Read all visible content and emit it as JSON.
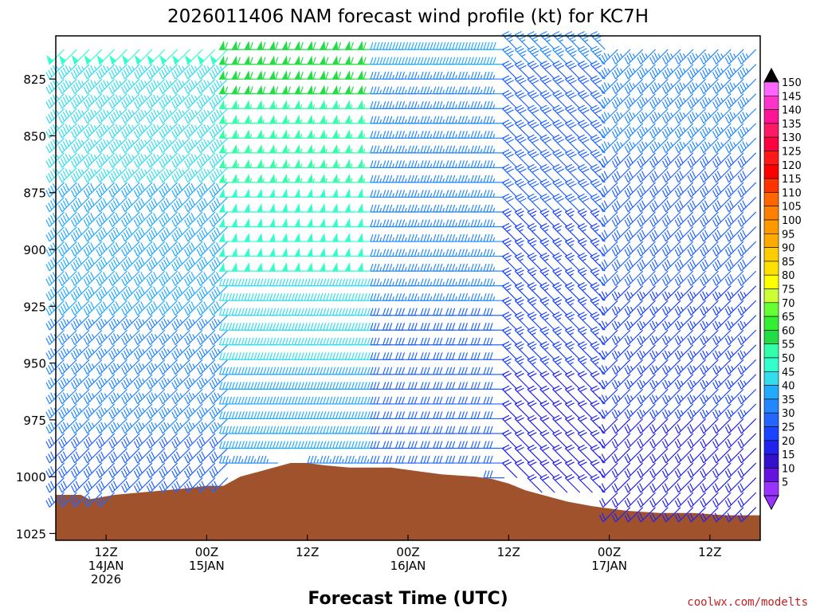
{
  "chart_data": {
    "type": "wind-barb time-height",
    "title": "2026011406 NAM forecast wind profile (kt) for KC7H",
    "xlabel": "Forecast Time (UTC)",
    "credit": "coolwx.com/modelts",
    "y_ticks": [
      "825",
      "850",
      "875",
      "900",
      "925",
      "950",
      "975",
      "1000",
      "1025"
    ],
    "y_values": [
      825,
      850,
      875,
      900,
      925,
      950,
      975,
      1000,
      1025
    ],
    "ylim": [
      1028,
      806
    ],
    "x_tick_labels": [
      {
        "hour": 6,
        "line1": "12Z",
        "line2": "14JAN",
        "line3": "2026"
      },
      {
        "hour": 18,
        "line1": "00Z",
        "line2": "15JAN",
        "line3": ""
      },
      {
        "hour": 30,
        "line1": "12Z",
        "line2": "",
        "line3": ""
      },
      {
        "hour": 42,
        "line1": "00Z",
        "line2": "16JAN",
        "line3": ""
      },
      {
        "hour": 54,
        "line1": "12Z",
        "line2": "",
        "line3": ""
      },
      {
        "hour": 66,
        "line1": "00Z",
        "line2": "17JAN",
        "line3": ""
      },
      {
        "hour": 78,
        "line1": "12Z",
        "line2": "",
        "line3": ""
      }
    ],
    "xlim": [
      0,
      84
    ],
    "surface_pressure": [
      {
        "hour": 0,
        "p": 1008
      },
      {
        "hour": 3,
        "p": 1008
      },
      {
        "hour": 4,
        "p": 1010
      },
      {
        "hour": 7,
        "p": 1008
      },
      {
        "hour": 10,
        "p": 1007
      },
      {
        "hour": 13,
        "p": 1006
      },
      {
        "hour": 16,
        "p": 1005
      },
      {
        "hour": 18,
        "p": 1004
      },
      {
        "hour": 20,
        "p": 1004
      },
      {
        "hour": 22,
        "p": 1000
      },
      {
        "hour": 24,
        "p": 998
      },
      {
        "hour": 26,
        "p": 996
      },
      {
        "hour": 28,
        "p": 994
      },
      {
        "hour": 30,
        "p": 994
      },
      {
        "hour": 32,
        "p": 995
      },
      {
        "hour": 35,
        "p": 996
      },
      {
        "hour": 38,
        "p": 996
      },
      {
        "hour": 40,
        "p": 996
      },
      {
        "hour": 42,
        "p": 997
      },
      {
        "hour": 44,
        "p": 998
      },
      {
        "hour": 46,
        "p": 999
      },
      {
        "hour": 50,
        "p": 1000
      },
      {
        "hour": 52,
        "p": 1001
      },
      {
        "hour": 54,
        "p": 1003
      },
      {
        "hour": 56,
        "p": 1006
      },
      {
        "hour": 58,
        "p": 1008
      },
      {
        "hour": 61,
        "p": 1011
      },
      {
        "hour": 64,
        "p": 1013
      },
      {
        "hour": 68,
        "p": 1015
      },
      {
        "hour": 72,
        "p": 1016
      },
      {
        "hour": 76,
        "p": 1016
      },
      {
        "hour": 80,
        "p": 1017
      },
      {
        "hour": 84,
        "p": 1017
      }
    ],
    "wind_regimes": [
      {
        "from_hour": 0,
        "to_hour": 22,
        "direction": "SW",
        "speed_low_kt": 30,
        "speed_high_kt": 50
      },
      {
        "from_hour": 22,
        "to_hour": 40,
        "direction": "W",
        "speed_low_kt": 35,
        "speed_high_kt": 62
      },
      {
        "from_hour": 40,
        "to_hour": 54,
        "direction": "W",
        "speed_low_kt": 30,
        "speed_high_kt": 40
      },
      {
        "from_hour": 54,
        "to_hour": 66,
        "direction": "NW",
        "speed_low_kt": 20,
        "speed_high_kt": 35
      },
      {
        "from_hour": 66,
        "to_hour": 84,
        "direction": "SW",
        "speed_low_kt": 20,
        "speed_high_kt": 38
      }
    ],
    "colorbar": {
      "labels": [
        "150",
        "145",
        "140",
        "135",
        "130",
        "125",
        "120",
        "115",
        "110",
        "105",
        "100",
        "95",
        "90",
        "85",
        "80",
        "75",
        "70",
        "65",
        "60",
        "55",
        "50",
        "45",
        "40",
        "35",
        "30",
        "25",
        "20",
        "15",
        "10",
        "5"
      ],
      "colors": [
        "#ff66ff",
        "#ff33cc",
        "#ff1493",
        "#ff1a66",
        "#ff0040",
        "#ff1a1a",
        "#ff0000",
        "#ff3300",
        "#ff6600",
        "#ff8000",
        "#ff9900",
        "#ffaa00",
        "#ffcc00",
        "#ffe000",
        "#ffff00",
        "#ccff33",
        "#66ff33",
        "#33ee33",
        "#22dd44",
        "#33ffaa",
        "#33ffcc",
        "#33ddee",
        "#22aaff",
        "#2288ff",
        "#2266ff",
        "#1a44ff",
        "#2222ee",
        "#3311cc",
        "#6611dd",
        "#9933ff"
      ],
      "arrow_top_color": "#000000",
      "arrow_bottom_color": "#9933ff"
    },
    "ground_color": "#a0522d"
  }
}
